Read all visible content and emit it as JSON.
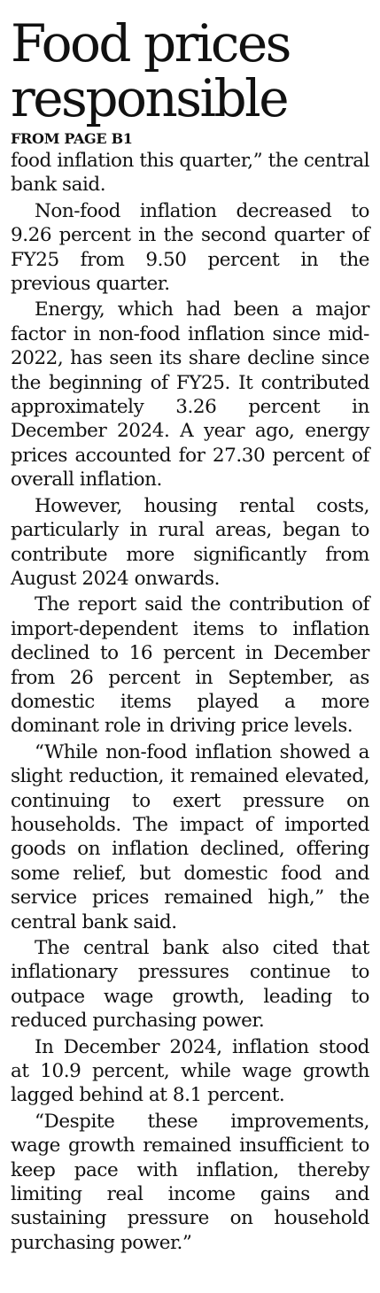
{
  "headline": {
    "line1": "Food prices",
    "line2": "responsible"
  },
  "jump_label": "FROM PAGE B1",
  "paragraphs": [
    "food inflation this quarter,” the central bank said.",
    "Non-food inflation decreased to 9.26 percent in the second quarter of FY25 from 9.50 percent in the previous quarter.",
    "Energy, which had been a major factor in non-food inflation since mid-2022, has seen its share decline since the beginning of FY25. It contributed approximately 3.26 percent in December 2024. A year ago, energy prices accounted for 27.30 percent of overall inflation.",
    "However, housing rental costs, particularly in rural areas, began to contribute more significantly from August 2024 onwards.",
    "The report said the contribution of import-dependent items to inflation declined to 16 percent in December from 26 percent in September, as domestic items played a more dominant role in driving price levels.",
    "“While non-food inflation showed a slight reduction, it remained elevated, continuing to exert pressure on households. The impact of imported goods on inflation declined, offering some relief, but domestic food and service prices remained high,” the central bank said.",
    "The central bank also cited that inflationary pressures continue to outpace wage growth, leading to reduced purchasing power.",
    "In December 2024, inflation stood at 10.9 percent, while wage growth lagged behind at 8.1 percent.",
    "“Despite these improvements, wage growth remained insufficient to keep pace with inflation, thereby limiting real income gains and sustaining pressure on household purchasing power.”"
  ]
}
